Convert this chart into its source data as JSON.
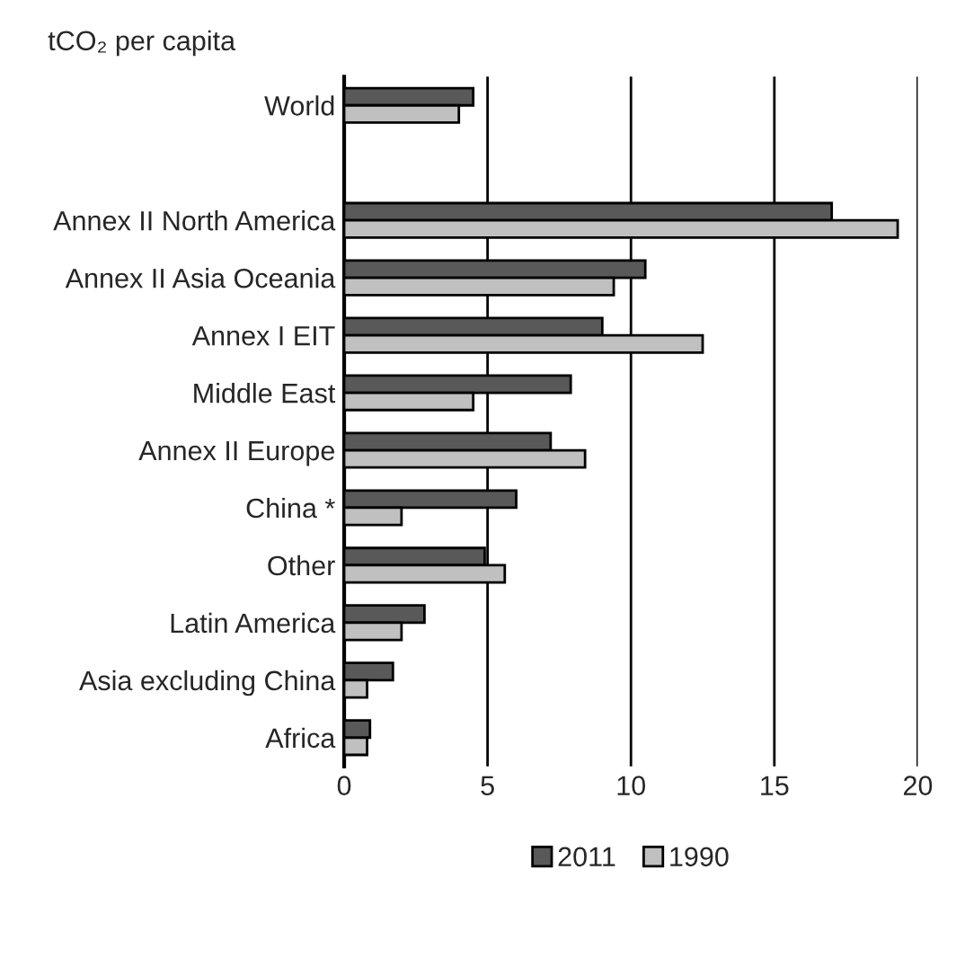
{
  "chart_data": {
    "type": "bar",
    "orientation": "horizontal",
    "ylabel": "tCO₂ per capita",
    "categories": [
      "World",
      null,
      "Annex II North America",
      "Annex II Asia Oceania",
      "Annex I EIT",
      "Middle East",
      "Annex II Europe",
      "China *",
      "Other",
      "Latin America",
      "Asia excluding China",
      "Africa"
    ],
    "series": [
      {
        "name": "2011",
        "color": "#595959",
        "values": [
          4.5,
          null,
          17.0,
          10.5,
          9.0,
          7.9,
          7.2,
          6.0,
          4.9,
          2.8,
          1.7,
          0.9
        ]
      },
      {
        "name": "1990",
        "color": "#c0c0c0",
        "values": [
          4.0,
          null,
          19.3,
          9.4,
          12.5,
          4.5,
          8.4,
          2.0,
          5.6,
          2.0,
          0.8,
          0.8
        ]
      }
    ],
    "xlim": [
      0,
      20
    ],
    "xticks": [
      0,
      5,
      10,
      15,
      20
    ],
    "grid": "x",
    "legend": "bottom"
  }
}
